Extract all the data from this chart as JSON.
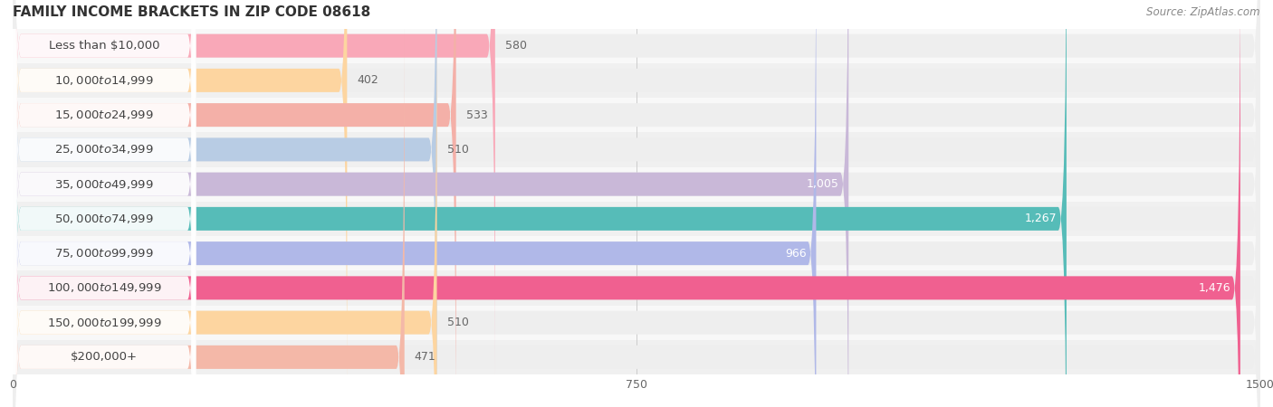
{
  "title": "FAMILY INCOME BRACKETS IN ZIP CODE 08618",
  "source": "Source: ZipAtlas.com",
  "categories": [
    "Less than $10,000",
    "$10,000 to $14,999",
    "$15,000 to $24,999",
    "$25,000 to $34,999",
    "$35,000 to $49,999",
    "$50,000 to $74,999",
    "$75,000 to $99,999",
    "$100,000 to $149,999",
    "$150,000 to $199,999",
    "$200,000+"
  ],
  "values": [
    580,
    402,
    533,
    510,
    1005,
    1267,
    966,
    1476,
    510,
    471
  ],
  "bar_colors": [
    "#f9a8b8",
    "#fdd5a0",
    "#f4b0a8",
    "#b8cce4",
    "#c9b8d8",
    "#56bcb8",
    "#b0b8e8",
    "#f06090",
    "#fdd5a0",
    "#f4b8a8"
  ],
  "value_colors_inside": [
    false,
    false,
    false,
    false,
    true,
    true,
    true,
    true,
    false,
    false
  ],
  "xlim": [
    0,
    1500
  ],
  "xticks": [
    0,
    750,
    1500
  ],
  "background_color": "#ffffff",
  "bar_bg_color": "#eeeeee",
  "row_bg_color": "#f5f5f5",
  "title_fontsize": 11,
  "label_fontsize": 9.5,
  "value_fontsize": 9,
  "source_fontsize": 8.5
}
